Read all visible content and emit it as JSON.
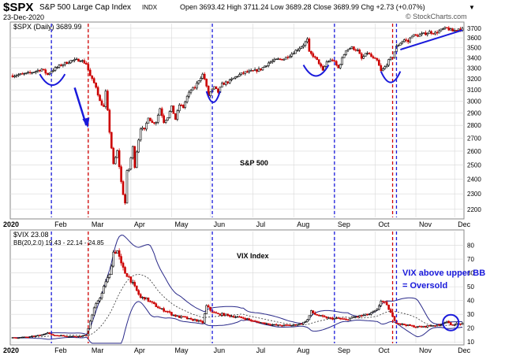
{
  "header": {
    "symbol": "$SPX",
    "name": "S&P 500 Large Cap Index",
    "exchange": "INDX",
    "date": "23-Dec-2020",
    "ohlc": "Open 3693.42  High 3711.24  Low 3689.28  Close 3689.99  Chg +2.73 (+0.07%)",
    "ohlc_tail": "▼",
    "watermark": "© StockCharts.com",
    "price_legend": "$SPX (Daily) 3689.99",
    "vix_legend": "$VIX 23.08",
    "bb_legend": "BB(20,2.0) 19.43 - 22.14 - 24.85"
  },
  "annotations": {
    "spx_label": "S&P 500",
    "vix_label": "VIX Index",
    "note_line1": "VIX above upper BB",
    "note_line2": "= Oversold"
  },
  "colors": {
    "up": "#000000",
    "down": "#cc0000",
    "annot_blue": "#1a1adb",
    "bb_line": "#2b2b8a",
    "vline_red": "#d00000",
    "vline_blue": "#1a1adb",
    "grid": "#d8d8d8"
  },
  "chart_data": [
    {
      "type": "candlestick",
      "title": "$SPX (Daily) 3689.99",
      "ylim": [
        2150,
        3750
      ],
      "yticks": [
        2200,
        2300,
        2400,
        2500,
        2600,
        2700,
        2800,
        2900,
        3000,
        3100,
        3200,
        3300,
        3400,
        3500,
        3600,
        3700
      ],
      "xlabels": [
        "2020",
        "Feb",
        "Mar",
        "Apr",
        "May",
        "Jun",
        "Jul",
        "Aug",
        "Sep",
        "Oct",
        "Nov",
        "Dec"
      ],
      "close_path": [
        [
          0,
          3230
        ],
        [
          8,
          3250
        ],
        [
          15,
          3290
        ],
        [
          18,
          3240
        ],
        [
          20,
          3275
        ],
        [
          25,
          3330
        ],
        [
          30,
          3370
        ],
        [
          35,
          3380
        ],
        [
          38,
          3340
        ],
        [
          40,
          3225
        ],
        [
          43,
          3130
        ],
        [
          45,
          3000
        ],
        [
          47,
          2950
        ],
        [
          48,
          3080
        ],
        [
          50,
          2750
        ],
        [
          52,
          2500
        ],
        [
          54,
          2600
        ],
        [
          56,
          2380
        ],
        [
          57,
          2300
        ],
        [
          58,
          2240
        ],
        [
          59,
          2450
        ],
        [
          60,
          2470
        ],
        [
          62,
          2630
        ],
        [
          63,
          2490
        ],
        [
          64,
          2600
        ],
        [
          66,
          2780
        ],
        [
          68,
          2760
        ],
        [
          70,
          2870
        ],
        [
          72,
          2820
        ],
        [
          74,
          2830
        ],
        [
          76,
          2940
        ],
        [
          78,
          2830
        ],
        [
          80,
          2870
        ],
        [
          82,
          2950
        ],
        [
          84,
          2850
        ],
        [
          86,
          2970
        ],
        [
          88,
          2950
        ],
        [
          90,
          3040
        ],
        [
          92,
          3100
        ],
        [
          94,
          3120
        ],
        [
          96,
          3190
        ],
        [
          98,
          3240
        ],
        [
          99,
          3200
        ],
        [
          101,
          3050
        ],
        [
          102,
          3080
        ],
        [
          104,
          3120
        ],
        [
          106,
          3080
        ],
        [
          108,
          3150
        ],
        [
          112,
          3180
        ],
        [
          116,
          3230
        ],
        [
          120,
          3260
        ],
        [
          124,
          3270
        ],
        [
          128,
          3290
        ],
        [
          132,
          3350
        ],
        [
          136,
          3380
        ],
        [
          140,
          3390
        ],
        [
          144,
          3440
        ],
        [
          148,
          3500
        ],
        [
          150,
          3530
        ],
        [
          152,
          3580
        ],
        [
          153,
          3450
        ],
        [
          155,
          3420
        ],
        [
          158,
          3350
        ],
        [
          160,
          3270
        ],
        [
          162,
          3360
        ],
        [
          165,
          3380
        ],
        [
          168,
          3300
        ],
        [
          172,
          3480
        ],
        [
          175,
          3500
        ],
        [
          178,
          3470
        ],
        [
          180,
          3390
        ],
        [
          183,
          3450
        ],
        [
          186,
          3390
        ],
        [
          188,
          3370
        ],
        [
          190,
          3270
        ],
        [
          192,
          3310
        ],
        [
          194,
          3370
        ],
        [
          196,
          3410
        ],
        [
          198,
          3510
        ],
        [
          200,
          3550
        ],
        [
          202,
          3580
        ],
        [
          204,
          3560
        ],
        [
          206,
          3630
        ],
        [
          208,
          3620
        ],
        [
          212,
          3640
        ],
        [
          215,
          3660
        ],
        [
          218,
          3650
        ],
        [
          220,
          3670
        ],
        [
          222,
          3690
        ],
        [
          224,
          3700
        ],
        [
          227,
          3670
        ],
        [
          230,
          3695
        ],
        [
          232,
          3690
        ]
      ],
      "n_days": 232
    },
    {
      "type": "candlestick",
      "title": "$VIX 23.08",
      "ylim": [
        9,
        90
      ],
      "yticks": [
        10,
        20,
        30,
        40,
        50,
        60,
        70,
        80
      ],
      "xlabels": [
        "2020",
        "Feb",
        "Mar",
        "Apr",
        "May",
        "Jun",
        "Jul",
        "Aug",
        "Sep",
        "Oct",
        "Nov",
        "Dec"
      ],
      "close_path": [
        [
          0,
          13
        ],
        [
          8,
          13.5
        ],
        [
          15,
          15
        ],
        [
          18,
          17
        ],
        [
          20,
          15
        ],
        [
          25,
          14.5
        ],
        [
          30,
          14
        ],
        [
          35,
          14
        ],
        [
          38,
          15
        ],
        [
          40,
          25
        ],
        [
          42,
          34
        ],
        [
          44,
          40
        ],
        [
          46,
          45
        ],
        [
          48,
          54
        ],
        [
          50,
          58
        ],
        [
          52,
          75
        ],
        [
          54,
          76
        ],
        [
          56,
          66
        ],
        [
          58,
          60
        ],
        [
          60,
          57
        ],
        [
          62,
          52
        ],
        [
          64,
          47
        ],
        [
          66,
          42
        ],
        [
          68,
          42
        ],
        [
          70,
          40
        ],
        [
          72,
          38
        ],
        [
          74,
          36
        ],
        [
          76,
          34
        ],
        [
          78,
          33
        ],
        [
          80,
          32
        ],
        [
          82,
          30
        ],
        [
          84,
          29
        ],
        [
          86,
          28
        ],
        [
          88,
          28
        ],
        [
          90,
          27
        ],
        [
          92,
          26
        ],
        [
          94,
          26
        ],
        [
          96,
          25
        ],
        [
          98,
          24
        ],
        [
          100,
          36
        ],
        [
          102,
          33
        ],
        [
          104,
          31
        ],
        [
          106,
          30
        ],
        [
          108,
          30
        ],
        [
          112,
          29
        ],
        [
          116,
          28
        ],
        [
          120,
          27
        ],
        [
          124,
          25
        ],
        [
          128,
          24
        ],
        [
          132,
          23
        ],
        [
          136,
          22
        ],
        [
          140,
          22
        ],
        [
          144,
          22
        ],
        [
          148,
          23
        ],
        [
          150,
          24
        ],
        [
          152,
          26
        ],
        [
          154,
          32
        ],
        [
          156,
          30
        ],
        [
          160,
          28
        ],
        [
          164,
          27
        ],
        [
          168,
          27
        ],
        [
          172,
          26
        ],
        [
          176,
          28
        ],
        [
          180,
          29
        ],
        [
          184,
          30
        ],
        [
          188,
          33
        ],
        [
          190,
          40
        ],
        [
          192,
          38
        ],
        [
          194,
          34
        ],
        [
          196,
          28
        ],
        [
          198,
          24
        ],
        [
          200,
          23
        ],
        [
          204,
          22
        ],
        [
          208,
          21
        ],
        [
          212,
          21
        ],
        [
          216,
          22
        ],
        [
          220,
          22
        ],
        [
          222,
          24
        ],
        [
          224,
          25
        ],
        [
          226,
          22
        ],
        [
          228,
          23
        ],
        [
          232,
          23
        ]
      ],
      "series": [
        {
          "name": "BB(20,2.0) 19.43 - 22.14 - 24.85"
        }
      ]
    }
  ]
}
